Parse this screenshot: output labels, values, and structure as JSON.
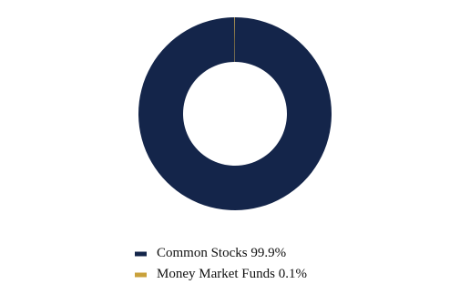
{
  "chart_data": {
    "type": "donut",
    "categories": [
      "Common Stocks",
      "Money Market Funds"
    ],
    "values": [
      99.9,
      0.1
    ],
    "value_labels": [
      "99.9%",
      "0.1%"
    ],
    "colors": [
      "#14254a",
      "#c9a13b"
    ]
  }
}
